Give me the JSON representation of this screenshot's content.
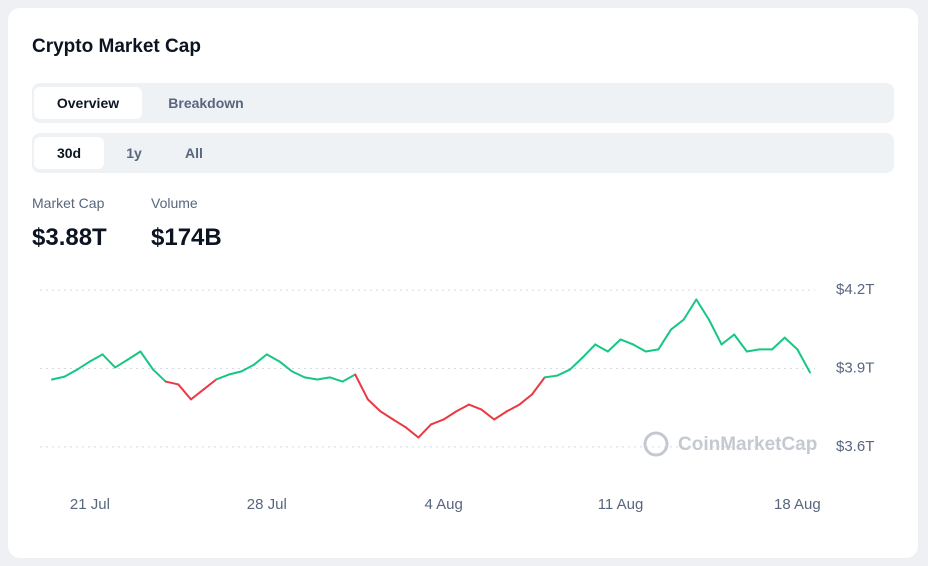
{
  "header": {
    "title": "Crypto Market Cap"
  },
  "tabs": [
    "Overview",
    "Breakdown"
  ],
  "periods": [
    "30d",
    "1y",
    "All"
  ],
  "stats": [
    {
      "label": "Market Cap",
      "value": "$3.88T"
    },
    {
      "label": "Volume",
      "value": "$174B"
    }
  ],
  "chart_data": {
    "type": "line",
    "watermark": "CoinMarketCap",
    "categories": [
      null,
      null,
      null,
      "21 Jul",
      null,
      null,
      null,
      null,
      null,
      null,
      null,
      null,
      null,
      null,
      null,
      null,
      null,
      "28 Jul",
      null,
      null,
      null,
      null,
      null,
      null,
      null,
      null,
      null,
      null,
      null,
      null,
      null,
      "4 Aug",
      null,
      null,
      null,
      null,
      null,
      null,
      null,
      null,
      null,
      null,
      null,
      null,
      null,
      "11 Aug",
      null,
      null,
      null,
      null,
      null,
      null,
      null,
      null,
      null,
      null,
      null,
      null,
      null,
      "18 Aug",
      null
    ],
    "values": [
      3.858,
      3.869,
      3.896,
      3.927,
      3.954,
      3.904,
      3.934,
      3.965,
      3.896,
      3.85,
      3.839,
      3.782,
      3.82,
      3.858,
      3.877,
      3.889,
      3.915,
      3.954,
      3.927,
      3.889,
      3.866,
      3.858,
      3.866,
      3.85,
      3.877,
      3.782,
      3.736,
      3.705,
      3.675,
      3.636,
      3.686,
      3.705,
      3.736,
      3.762,
      3.743,
      3.705,
      3.736,
      3.762,
      3.801,
      3.866,
      3.873,
      3.896,
      3.942,
      3.992,
      3.965,
      4.011,
      3.992,
      3.965,
      3.973,
      4.049,
      4.087,
      4.164,
      4.087,
      3.992,
      4.03,
      3.965,
      3.973,
      3.973,
      4.018,
      3.973,
      3.885
    ],
    "up_color": "#16c784",
    "down_color": "#ea3943",
    "ylim": [
      3.55,
      4.25
    ],
    "yticks": [
      {
        "value": 3.6,
        "label": "$3.6T"
      },
      {
        "value": 3.9,
        "label": "$3.9T"
      },
      {
        "value": 4.2,
        "label": "$4.2T"
      }
    ],
    "grid": true
  }
}
